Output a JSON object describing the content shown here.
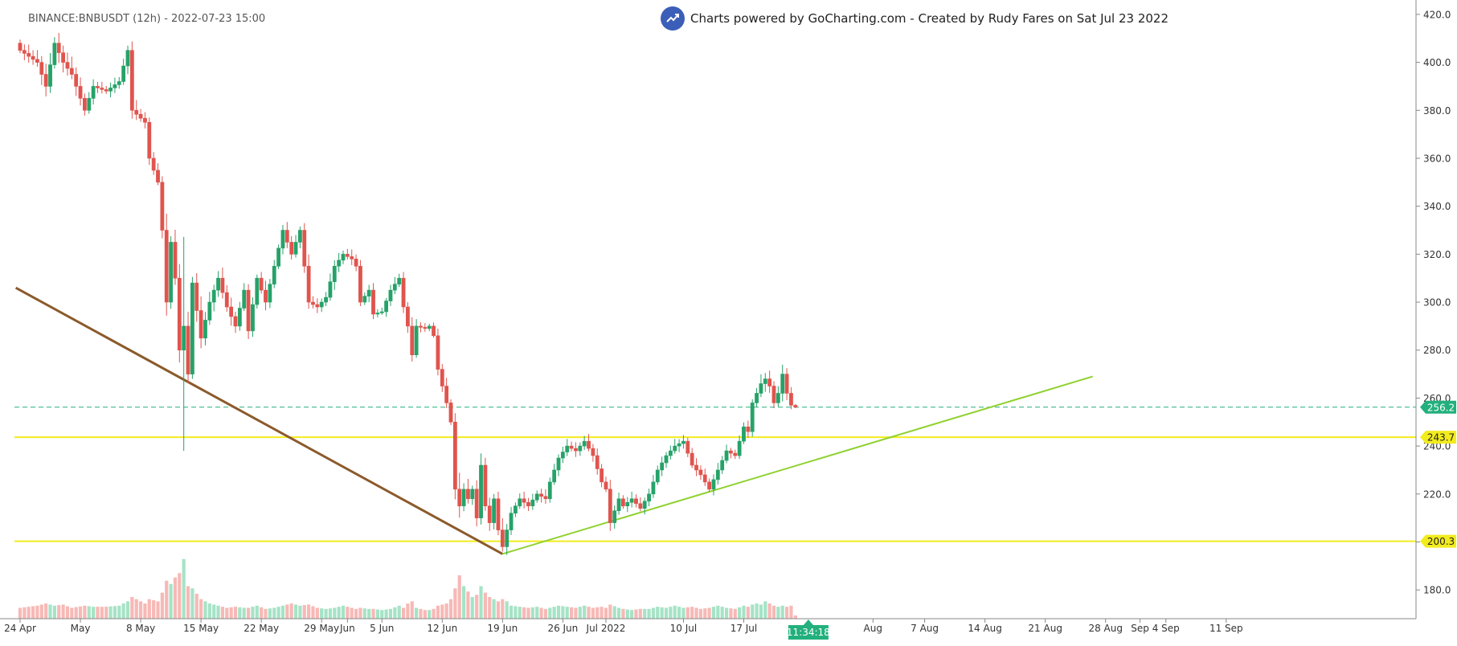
{
  "header": {
    "symbol_line": "BINANCE:BNBUSDT (12h) - 2022-07-23 15:00",
    "credit": "Charts powered by GoCharting.com - Created by Rudy Fares on Sat Jul 23 2022",
    "logo_icon": "gocharting-trend-icon"
  },
  "colors": {
    "up": "#26a269",
    "down": "#e0544e",
    "up_volume": "#a6e3c6",
    "down_volume": "#f7b9b6",
    "support_line": "#f2ec1e",
    "price_line": "#22b07d",
    "downtrend_line": "#8b5a2b",
    "uptrend_line": "#8fd12f",
    "countdown": "#22b07d"
  },
  "chart_data": {
    "type": "candlestick",
    "symbol": "BINANCE:BNBUSDT",
    "interval": "12h",
    "y_axis": {
      "ylim": [
        168,
        426
      ],
      "ticks": [
        "420.0",
        "400.0",
        "380.0",
        "360.0",
        "340.0",
        "320.0",
        "300.0",
        "280.0",
        "260.0",
        "240.0",
        "220.0",
        "200.0",
        "180.0"
      ]
    },
    "x_axis": {
      "ticks": [
        {
          "label": "24 Apr",
          "day": 0
        },
        {
          "label": "May",
          "day": 7
        },
        {
          "label": "8 May",
          "day": 14
        },
        {
          "label": "15 May",
          "day": 21
        },
        {
          "label": "22 May",
          "day": 28
        },
        {
          "label": "29 May",
          "day": 35
        },
        {
          "label": "Jun",
          "day": 38
        },
        {
          "label": "5 Jun",
          "day": 42
        },
        {
          "label": "12 Jun",
          "day": 49
        },
        {
          "label": "19 Jun",
          "day": 56
        },
        {
          "label": "26 Jun",
          "day": 63
        },
        {
          "label": "Jul 2022",
          "day": 68
        },
        {
          "label": "10 Jul",
          "day": 77
        },
        {
          "label": "17 Jul",
          "day": 84
        },
        {
          "label": "Aug",
          "day": 99
        },
        {
          "label": "7 Aug",
          "day": 105
        },
        {
          "label": "14 Aug",
          "day": 112
        },
        {
          "label": "21 Aug",
          "day": 119
        },
        {
          "label": "28 Aug",
          "day": 126
        },
        {
          "label": "Sep",
          "day": 130
        },
        {
          "label": "4 Sep",
          "day": 133
        },
        {
          "label": "11 Sep",
          "day": 140
        }
      ]
    },
    "price_levels": [
      {
        "value": 256.2,
        "label": "256.2",
        "style": "dashed",
        "kind": "last-price"
      },
      {
        "value": 243.7,
        "label": "243.7",
        "style": "solid",
        "kind": "support"
      },
      {
        "value": 200.3,
        "label": "200.3",
        "style": "solid",
        "kind": "support"
      }
    ],
    "trendlines": [
      {
        "kind": "downtrend",
        "from": {
          "day": -0.5,
          "price": 306
        },
        "to": {
          "day": 56,
          "price": 195
        }
      },
      {
        "kind": "uptrend",
        "from": {
          "day": 56,
          "price": 195
        },
        "to": {
          "day": 124.5,
          "price": 269
        }
      }
    ],
    "countdown": {
      "label": "11:34:18",
      "day": 91.5
    },
    "anchors": [
      {
        "day": 0,
        "close": 405,
        "range": 6,
        "vol": 10
      },
      {
        "day": 2,
        "close": 400,
        "range": 9,
        "vol": 12
      },
      {
        "day": 3,
        "close": 390,
        "range": 12,
        "vol": 14
      },
      {
        "day": 4,
        "close": 408,
        "range": 8,
        "vol": 12
      },
      {
        "day": 5,
        "close": 400,
        "range": 12,
        "vol": 13
      },
      {
        "day": 6,
        "close": 395,
        "range": 10,
        "vol": 10
      },
      {
        "day": 7.5,
        "close": 380,
        "range": 8,
        "vol": 12
      },
      {
        "day": 8.5,
        "close": 390,
        "range": 6,
        "vol": 11
      },
      {
        "day": 10,
        "close": 388,
        "range": 6,
        "vol": 11
      },
      {
        "day": 11.5,
        "close": 392,
        "range": 6,
        "vol": 12
      },
      {
        "day": 12.5,
        "close": 405,
        "range": 8,
        "vol": 16
      },
      {
        "day": 13,
        "close": 380,
        "range": 10,
        "vol": 20
      },
      {
        "day": 14.5,
        "close": 375,
        "range": 6,
        "vol": 14
      },
      {
        "day": 15,
        "close": 360,
        "range": 8,
        "vol": 18
      },
      {
        "day": 16,
        "close": 350,
        "range": 6,
        "vol": 16
      },
      {
        "day": 16.5,
        "close": 330,
        "range": 8,
        "vol": 24
      },
      {
        "day": 17,
        "close": 300,
        "range": 16,
        "vol": 35
      },
      {
        "day": 17.5,
        "close": 325,
        "range": 10,
        "vol": 32
      },
      {
        "day": 18,
        "close": 310,
        "range": 14,
        "vol": 38
      },
      {
        "day": 18.5,
        "close": 280,
        "range": 12,
        "vol": 42
      },
      {
        "day": 19,
        "close": 290,
        "range": 120,
        "vol": 55
      },
      {
        "day": 19.5,
        "close": 270,
        "range": 14,
        "vol": 30
      },
      {
        "day": 20,
        "close": 308,
        "range": 10,
        "vol": 28
      },
      {
        "day": 21,
        "close": 285,
        "range": 12,
        "vol": 18
      },
      {
        "day": 22,
        "close": 300,
        "range": 10,
        "vol": 14
      },
      {
        "day": 23,
        "close": 310,
        "range": 8,
        "vol": 12
      },
      {
        "day": 24,
        "close": 298,
        "range": 10,
        "vol": 10
      },
      {
        "day": 25,
        "close": 290,
        "range": 8,
        "vol": 11
      },
      {
        "day": 26,
        "close": 305,
        "range": 6,
        "vol": 10
      },
      {
        "day": 26.5,
        "close": 288,
        "range": 8,
        "vol": 10
      },
      {
        "day": 27.5,
        "close": 310,
        "range": 6,
        "vol": 12
      },
      {
        "day": 28.5,
        "close": 300,
        "range": 8,
        "vol": 9
      },
      {
        "day": 29.5,
        "close": 315,
        "range": 6,
        "vol": 10
      },
      {
        "day": 30.5,
        "close": 330,
        "range": 6,
        "vol": 12
      },
      {
        "day": 31.5,
        "close": 320,
        "range": 8,
        "vol": 14
      },
      {
        "day": 32.5,
        "close": 330,
        "range": 6,
        "vol": 12
      },
      {
        "day": 33.5,
        "close": 300,
        "range": 10,
        "vol": 13
      },
      {
        "day": 34.5,
        "close": 298,
        "range": 6,
        "vol": 10
      },
      {
        "day": 35.5,
        "close": 302,
        "range": 6,
        "vol": 9
      },
      {
        "day": 36.5,
        "close": 315,
        "range": 8,
        "vol": 10
      },
      {
        "day": 37.5,
        "close": 320,
        "range": 6,
        "vol": 12
      },
      {
        "day": 38.5,
        "close": 318,
        "range": 6,
        "vol": 10
      },
      {
        "day": 39,
        "close": 315,
        "range": 6,
        "vol": 9
      },
      {
        "day": 39.5,
        "close": 300,
        "range": 6,
        "vol": 10
      },
      {
        "day": 40.5,
        "close": 305,
        "range": 6,
        "vol": 9
      },
      {
        "day": 41,
        "close": 295,
        "range": 6,
        "vol": 9
      },
      {
        "day": 42,
        "close": 296,
        "range": 4,
        "vol": 8
      },
      {
        "day": 43,
        "close": 305,
        "range": 6,
        "vol": 9
      },
      {
        "day": 44,
        "close": 310,
        "range": 6,
        "vol": 12
      },
      {
        "day": 44.5,
        "close": 298,
        "range": 6,
        "vol": 10
      },
      {
        "day": 45,
        "close": 290,
        "range": 8,
        "vol": 14
      },
      {
        "day": 45.5,
        "close": 278,
        "range": 10,
        "vol": 16
      },
      {
        "day": 46,
        "close": 290,
        "range": 6,
        "vol": 10
      },
      {
        "day": 47,
        "close": 289,
        "range": 4,
        "vol": 8
      },
      {
        "day": 47.5,
        "close": 290,
        "range": 4,
        "vol": 8
      },
      {
        "day": 48,
        "close": 286,
        "range": 4,
        "vol": 9
      },
      {
        "day": 48.5,
        "close": 272,
        "range": 6,
        "vol": 12
      },
      {
        "day": 49.5,
        "close": 258,
        "range": 8,
        "vol": 14
      },
      {
        "day": 50,
        "close": 250,
        "range": 6,
        "vol": 18
      },
      {
        "day": 50.5,
        "close": 222,
        "range": 10,
        "vol": 28
      },
      {
        "day": 51,
        "close": 215,
        "range": 14,
        "vol": 40
      },
      {
        "day": 51.5,
        "close": 222,
        "range": 8,
        "vol": 30
      },
      {
        "day": 52,
        "close": 218,
        "range": 10,
        "vol": 25
      },
      {
        "day": 52.5,
        "close": 222,
        "range": 6,
        "vol": 20
      },
      {
        "day": 53,
        "close": 210,
        "range": 10,
        "vol": 22
      },
      {
        "day": 53.5,
        "close": 232,
        "range": 10,
        "vol": 30
      },
      {
        "day": 54,
        "close": 215,
        "range": 10,
        "vol": 24
      },
      {
        "day": 54.5,
        "close": 208,
        "range": 8,
        "vol": 20
      },
      {
        "day": 55,
        "close": 218,
        "range": 8,
        "vol": 18
      },
      {
        "day": 55.5,
        "close": 205,
        "range": 8,
        "vol": 16
      },
      {
        "day": 56,
        "close": 198,
        "range": 10,
        "vol": 18
      },
      {
        "day": 56.5,
        "close": 205,
        "range": 8,
        "vol": 16
      },
      {
        "day": 57,
        "close": 212,
        "range": 6,
        "vol": 12
      },
      {
        "day": 58,
        "close": 218,
        "range": 6,
        "vol": 11
      },
      {
        "day": 59,
        "close": 215,
        "range": 6,
        "vol": 10
      },
      {
        "day": 60,
        "close": 220,
        "range": 6,
        "vol": 11
      },
      {
        "day": 61,
        "close": 218,
        "range": 6,
        "vol": 9
      },
      {
        "day": 61.5,
        "close": 225,
        "range": 6,
        "vol": 10
      },
      {
        "day": 62.5,
        "close": 235,
        "range": 6,
        "vol": 12
      },
      {
        "day": 63.5,
        "close": 240,
        "range": 6,
        "vol": 11
      },
      {
        "day": 64.5,
        "close": 238,
        "range": 6,
        "vol": 10
      },
      {
        "day": 65.5,
        "close": 242,
        "range": 6,
        "vol": 12
      },
      {
        "day": 66.5,
        "close": 236,
        "range": 6,
        "vol": 10
      },
      {
        "day": 67.5,
        "close": 225,
        "range": 8,
        "vol": 11
      },
      {
        "day": 68,
        "close": 222,
        "range": 6,
        "vol": 10
      },
      {
        "day": 68.5,
        "close": 208,
        "range": 8,
        "vol": 13
      },
      {
        "day": 69.5,
        "close": 218,
        "range": 6,
        "vol": 10
      },
      {
        "day": 70,
        "close": 215,
        "range": 6,
        "vol": 9
      },
      {
        "day": 71,
        "close": 218,
        "range": 6,
        "vol": 8
      },
      {
        "day": 72,
        "close": 214,
        "range": 6,
        "vol": 9
      },
      {
        "day": 73,
        "close": 220,
        "range": 6,
        "vol": 9
      },
      {
        "day": 74,
        "close": 230,
        "range": 6,
        "vol": 11
      },
      {
        "day": 75,
        "close": 236,
        "range": 6,
        "vol": 10
      },
      {
        "day": 76,
        "close": 240,
        "range": 6,
        "vol": 12
      },
      {
        "day": 77,
        "close": 242,
        "range": 6,
        "vol": 10
      },
      {
        "day": 78,
        "close": 232,
        "range": 6,
        "vol": 11
      },
      {
        "day": 79,
        "close": 228,
        "range": 6,
        "vol": 9
      },
      {
        "day": 80,
        "close": 222,
        "range": 6,
        "vol": 10
      },
      {
        "day": 81,
        "close": 230,
        "range": 6,
        "vol": 12
      },
      {
        "day": 82,
        "close": 238,
        "range": 6,
        "vol": 10
      },
      {
        "day": 83,
        "close": 236,
        "range": 4,
        "vol": 9
      },
      {
        "day": 84,
        "close": 248,
        "range": 6,
        "vol": 12
      },
      {
        "day": 84.5,
        "close": 246,
        "range": 6,
        "vol": 11
      },
      {
        "day": 85,
        "close": 258,
        "range": 6,
        "vol": 13
      },
      {
        "day": 85.5,
        "close": 262,
        "range": 6,
        "vol": 14
      },
      {
        "day": 86,
        "close": 266,
        "range": 8,
        "vol": 13
      },
      {
        "day": 86.5,
        "close": 268,
        "range": 8,
        "vol": 16
      },
      {
        "day": 87,
        "close": 265,
        "range": 8,
        "vol": 14
      },
      {
        "day": 87.5,
        "close": 258,
        "range": 8,
        "vol": 12
      },
      {
        "day": 88,
        "close": 262,
        "range": 8,
        "vol": 11
      },
      {
        "day": 88.5,
        "close": 270,
        "range": 8,
        "vol": 12
      },
      {
        "day": 89,
        "close": 262,
        "range": 8,
        "vol": 11
      },
      {
        "day": 89.5,
        "close": 257,
        "range": 6,
        "vol": 12
      },
      {
        "day": 90,
        "close": 256.2,
        "range": 2,
        "vol": 3
      }
    ]
  }
}
